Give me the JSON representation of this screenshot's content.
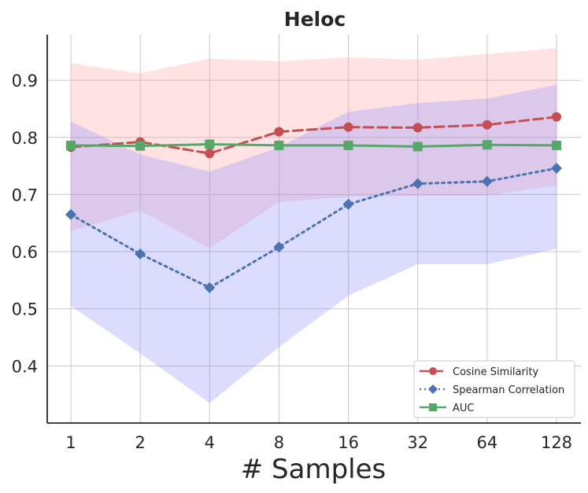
{
  "chart_data": {
    "type": "line",
    "title": "Heloc",
    "xlabel": "# Samples",
    "ylabel": "",
    "categories": [
      "1",
      "2",
      "4",
      "8",
      "16",
      "32",
      "64",
      "128"
    ],
    "ylim": [
      0.3,
      0.98
    ],
    "yticks": [
      0.4,
      0.5,
      0.6,
      0.7,
      0.8,
      0.9
    ],
    "ytick_labels": [
      "0.4",
      "0.5",
      "0.6",
      "0.7",
      "0.8",
      "0.9"
    ],
    "grid": true,
    "legend_position": "bottom-right",
    "series": [
      {
        "name": "Cosine Similarity",
        "color": "#c44e52",
        "band_color": "#ff9999",
        "linestyle": "dashed",
        "marker": "circle",
        "values": [
          0.783,
          0.792,
          0.772,
          0.81,
          0.818,
          0.817,
          0.822,
          0.836
        ],
        "upper": [
          0.93,
          0.912,
          0.938,
          0.933,
          0.94,
          0.936,
          0.946,
          0.956
        ],
        "lower": [
          0.636,
          0.672,
          0.606,
          0.687,
          0.696,
          0.698,
          0.698,
          0.716
        ]
      },
      {
        "name": "Spearman Correlation",
        "color": "#4c72b0",
        "band_color": "#8080ff",
        "linestyle": "dotted",
        "marker": "diamond",
        "values": [
          0.665,
          0.596,
          0.537,
          0.608,
          0.683,
          0.719,
          0.723,
          0.746
        ],
        "upper": [
          0.828,
          0.77,
          0.74,
          0.783,
          0.845,
          0.86,
          0.868,
          0.892
        ],
        "lower": [
          0.505,
          0.422,
          0.335,
          0.433,
          0.523,
          0.578,
          0.578,
          0.605
        ]
      },
      {
        "name": "AUC",
        "color": "#55a868",
        "linestyle": "solid",
        "marker": "square",
        "values": [
          0.786,
          0.785,
          0.788,
          0.786,
          0.786,
          0.784,
          0.787,
          0.786
        ]
      }
    ]
  }
}
